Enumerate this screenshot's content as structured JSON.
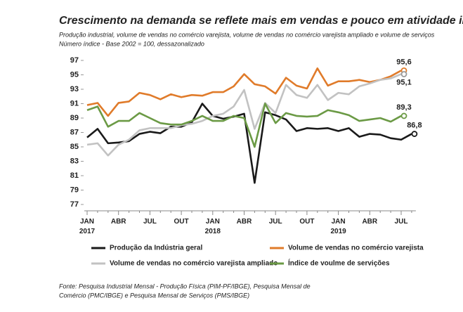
{
  "chart_data": {
    "type": "line",
    "title": "Crescimento na demanda se reflete mais em vendas e pouco em atividade industrial",
    "subtitle": "Produção industrial, volume de vendas no comércio varejista, volume de vendas no comércio varejista ampliado e volume de serviços",
    "subtitle2": "Número índice - Base 2002 = 100, dessazonalizado",
    "source": [
      "Fonte: Pesquisa Industrial Mensal - Produção Física (PIM-PF/IBGE), Pesquisa Mensal de",
      "Comércio (PMC/IBGE) e Pesquisa Mensal de Serviços (PMS/IBGE)"
    ],
    "categories": [
      "JAN\n2017",
      null,
      null,
      "ABR",
      null,
      null,
      "JUL",
      null,
      null,
      "OUT",
      null,
      null,
      "JAN\n2018",
      null,
      null,
      "ABR",
      null,
      null,
      "JUL",
      null,
      null,
      "OUT",
      null,
      null,
      "JAN\n2019",
      null,
      null,
      "ABR",
      null,
      null,
      "JUL",
      null
    ],
    "ylim": [
      77,
      97
    ],
    "yticks": [
      77,
      79,
      81,
      83,
      85,
      87,
      89,
      91,
      93,
      95,
      97
    ],
    "grid": false,
    "series": [
      {
        "name": "Produção da Indústria geral",
        "color": "#1a1a1a",
        "values": [
          86.3,
          87.5,
          85.5,
          85.6,
          85.8,
          86.8,
          87.1,
          86.9,
          87.8,
          87.8,
          88.4,
          91.0,
          89.3,
          88.9,
          89.2,
          89.6,
          80.0,
          89.8,
          89.4,
          88.8,
          87.2,
          87.6,
          87.5,
          87.6,
          87.2,
          87.6,
          86.4,
          86.8,
          86.7,
          86.2,
          86.0,
          86.8
        ],
        "value_labels": [
          null,
          null,
          null,
          null,
          null,
          null,
          null,
          null,
          null,
          null,
          null,
          null,
          null,
          null,
          null,
          null,
          null,
          null,
          null,
          null,
          null,
          null,
          null,
          null,
          null,
          null,
          null,
          null,
          null,
          null,
          null,
          "86,8"
        ]
      },
      {
        "name": "Volume de vendas no comércio varejista",
        "color": "#e07b2a",
        "values": [
          90.8,
          91.1,
          89.3,
          91.1,
          91.3,
          92.5,
          92.2,
          91.6,
          92.3,
          91.9,
          92.2,
          92.1,
          92.6,
          92.6,
          93.4,
          95.1,
          93.7,
          93.4,
          92.4,
          94.6,
          93.5,
          93.1,
          95.9,
          93.5,
          94.1,
          94.1,
          94.3,
          94.0,
          94.3,
          94.8,
          95.6,
          null
        ],
        "value_labels": [
          null,
          null,
          null,
          null,
          null,
          null,
          null,
          null,
          null,
          null,
          null,
          null,
          null,
          null,
          null,
          null,
          null,
          null,
          null,
          null,
          null,
          null,
          null,
          null,
          null,
          null,
          null,
          null,
          null,
          null,
          "95,6",
          null
        ]
      },
      {
        "name": "Volume de vendas no comércio varejista ampliado",
        "color": "#c2c2c2",
        "values": [
          85.3,
          85.5,
          83.8,
          85.3,
          86.0,
          87.3,
          87.6,
          87.6,
          87.6,
          88.0,
          88.2,
          88.6,
          89.3,
          89.6,
          90.6,
          92.9,
          87.5,
          91.1,
          89.7,
          93.6,
          92.2,
          91.8,
          93.6,
          91.5,
          92.5,
          92.3,
          93.4,
          93.8,
          94.3,
          94.5,
          95.1,
          null
        ],
        "value_labels": [
          null,
          null,
          null,
          null,
          null,
          null,
          null,
          null,
          null,
          null,
          null,
          null,
          null,
          null,
          null,
          null,
          null,
          null,
          null,
          null,
          null,
          null,
          null,
          null,
          null,
          null,
          null,
          null,
          null,
          null,
          "95,1",
          null
        ]
      },
      {
        "name": "Índice de voulme de servições",
        "color": "#6b9a45",
        "values": [
          90.1,
          90.6,
          87.8,
          88.6,
          88.6,
          89.7,
          89.0,
          88.3,
          88.1,
          88.1,
          88.6,
          89.3,
          88.6,
          88.6,
          89.3,
          89.0,
          85.0,
          91.0,
          88.3,
          89.7,
          89.3,
          89.2,
          89.3,
          90.1,
          89.8,
          89.4,
          88.6,
          88.8,
          89.0,
          88.5,
          89.3,
          null
        ],
        "value_labels": [
          null,
          null,
          null,
          null,
          null,
          null,
          null,
          null,
          null,
          null,
          null,
          null,
          null,
          null,
          null,
          null,
          null,
          null,
          null,
          null,
          null,
          null,
          null,
          null,
          null,
          null,
          null,
          null,
          null,
          null,
          "89,3",
          null
        ]
      }
    ]
  }
}
